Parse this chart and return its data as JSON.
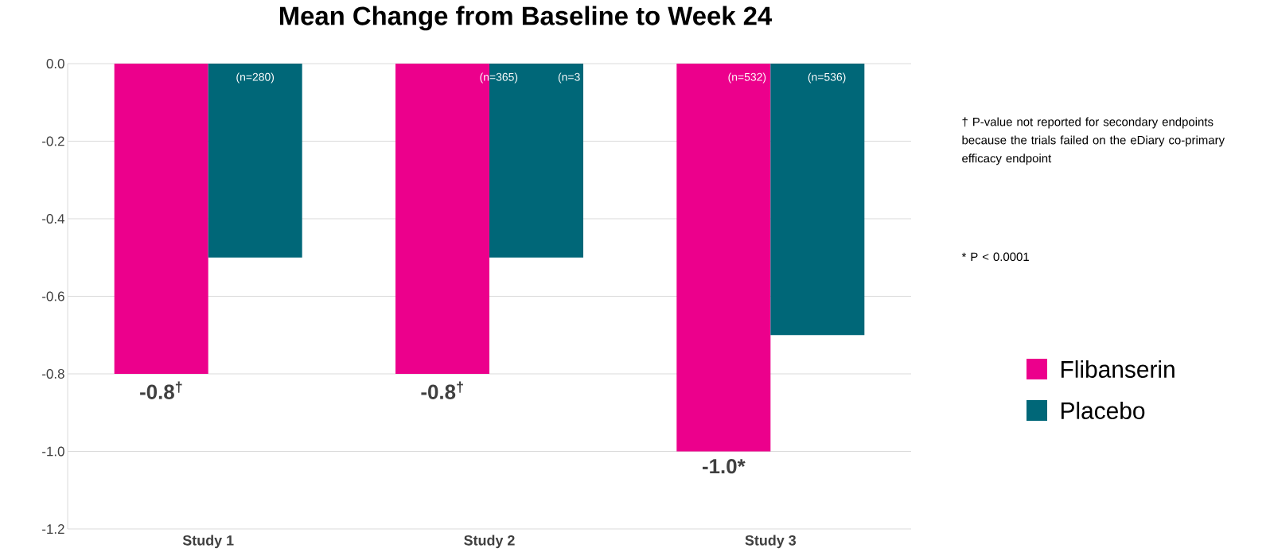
{
  "chart_data": {
    "type": "bar",
    "title": "Mean Change from Baseline to Week 24",
    "categories": [
      "Study 1",
      "Study 2",
      "Study 3"
    ],
    "series": [
      {
        "name": "Flibanserin",
        "color": "#ec008c",
        "values": [
          -0.8,
          -0.8,
          -1.0
        ],
        "value_labels": [
          "-0.8$^{†}$",
          "-0.8$^{†}$",
          "-1.0*"
        ]
      },
      {
        "name": "Placebo",
        "color": "#006778",
        "values": [
          -0.5,
          -0.5,
          -0.7
        ]
      }
    ],
    "ylim": [
      -1.2,
      0
    ],
    "yticks": [
      {
        "value": -1.2,
        "label": "-1.2"
      },
      {
        "value": -1.0,
        "label": "-1.0"
      },
      {
        "value": -0.8,
        "label": "-0.8"
      },
      {
        "value": -0.6,
        "label": "-0.6"
      },
      {
        "value": -0.4,
        "label": "-0.4"
      },
      {
        "value": -0.2,
        "label": "-0.2"
      },
      {
        "value": 0,
        "label": "0.0"
      }
    ],
    "grid": "y",
    "legend": "right",
    "annotations": [
      "(n=280)",
      "(n=365)",
      "(n=3",
      "(n=532)",
      "(n=536)",
      "† P-value not reported for secondary endpoints because the trials failed on the eDiary co-primary efficacy endpoint",
      "* P < 0.0001"
    ]
  }
}
